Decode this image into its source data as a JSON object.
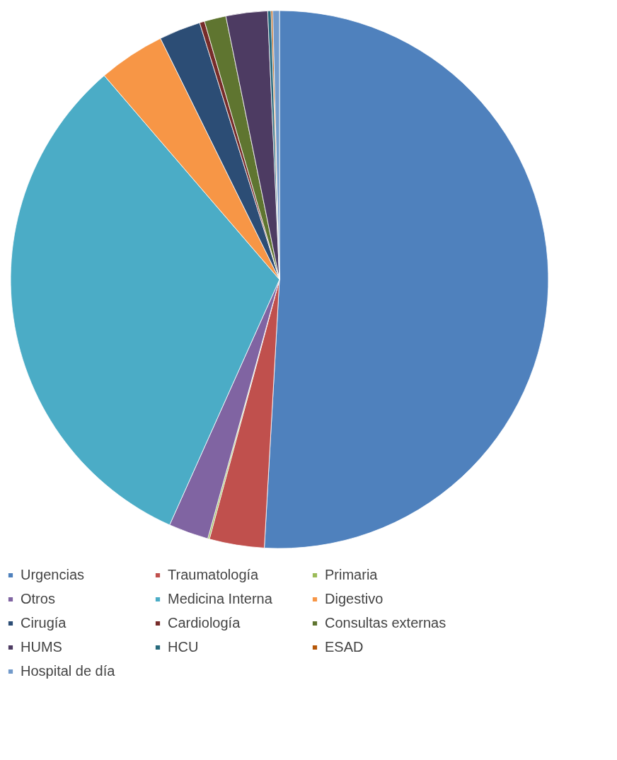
{
  "chart_data": {
    "type": "pie",
    "categories": [
      "Urgencias",
      "Traumatología",
      "Primaria",
      "Otros",
      "Medicina Interna",
      "Digestivo",
      "Cirugía",
      "Cardiología",
      "Consultas externas",
      "HUMS",
      "HCU",
      "ESAD",
      "Hospital de día"
    ],
    "values": [
      50.9,
      3.3,
      0.1,
      2.4,
      32.0,
      4.0,
      2.5,
      0.3,
      1.3,
      2.5,
      0.2,
      0.1,
      0.4
    ],
    "colors": [
      "#4f81bd",
      "#c0504d",
      "#9bbb59",
      "#8064a2",
      "#4bacc6",
      "#f79646",
      "#2c4d75",
      "#772c2a",
      "#5f7530",
      "#4d3b62",
      "#276a7c",
      "#b65708",
      "#729aca"
    ],
    "legend": "bottom"
  }
}
